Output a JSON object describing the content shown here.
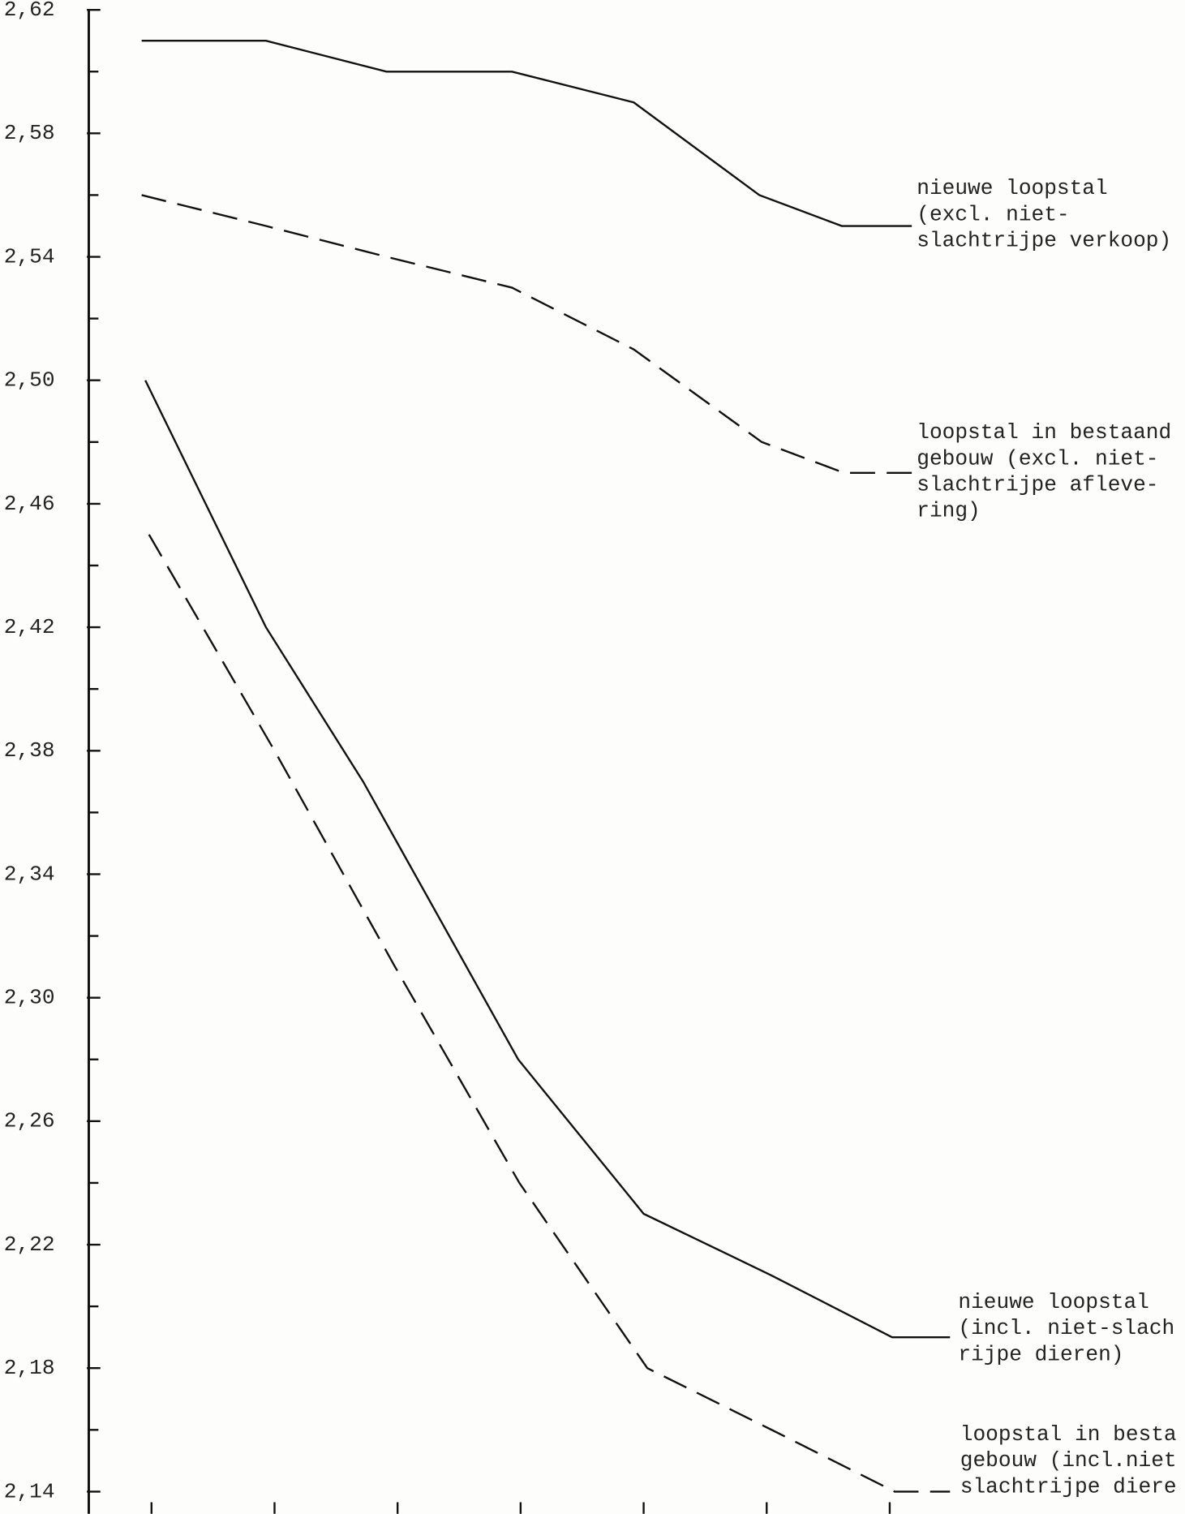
{
  "chart_data": {
    "type": "line",
    "ylim": [
      2.14,
      2.62
    ],
    "yticks": [
      {
        "value": 2.14,
        "label": "2,14"
      },
      {
        "value": 2.18,
        "label": "2,18"
      },
      {
        "value": 2.22,
        "label": "2,22"
      },
      {
        "value": 2.26,
        "label": "2,26"
      },
      {
        "value": 2.3,
        "label": "2,30"
      },
      {
        "value": 2.34,
        "label": "2,34"
      },
      {
        "value": 2.38,
        "label": "2,38"
      },
      {
        "value": 2.42,
        "label": "2,42"
      },
      {
        "value": 2.46,
        "label": "2,46"
      },
      {
        "value": 2.5,
        "label": "2,50"
      },
      {
        "value": 2.54,
        "label": "2,54"
      },
      {
        "value": 2.58,
        "label": "2,58"
      },
      {
        "value": 2.62,
        "label": "2,62"
      }
    ],
    "yticks_minor": [
      2.16,
      2.2,
      2.24,
      2.28,
      2.32,
      2.36,
      2.4,
      2.44,
      2.48,
      2.52,
      2.56,
      2.6
    ],
    "xlim": [
      0.49,
      9.4
    ],
    "xticks": [
      1,
      2,
      3,
      4,
      5,
      6,
      7
    ],
    "grid": false,
    "series": [
      {
        "color": "#111111",
        "dashed": false,
        "x": [
          0.92,
          1.93,
          2.91,
          3.93,
          4.92,
          5.94,
          6.61,
          7.18
        ],
        "values": [
          2.61,
          2.61,
          2.6,
          2.6,
          2.59,
          2.56,
          2.55,
          2.55
        ]
      },
      {
        "color": "#111111",
        "dashed": true,
        "x": [
          0.92,
          1.93,
          2.91,
          3.93,
          4.92,
          5.96,
          6.63,
          7.18
        ],
        "values": [
          2.56,
          2.55,
          2.54,
          2.53,
          2.51,
          2.48,
          2.47,
          2.47
        ]
      },
      {
        "color": "#111111",
        "dashed": false,
        "x": [
          0.95,
          1.93,
          2.72,
          3.98,
          5.0,
          6.04,
          7.02,
          7.49
        ],
        "values": [
          2.5,
          2.42,
          2.37,
          2.28,
          2.23,
          2.21,
          2.19,
          2.19
        ]
      },
      {
        "color": "#111111",
        "dashed": true,
        "x": [
          0.98,
          2.0,
          2.98,
          3.99,
          5.03,
          6.04,
          7.04,
          7.49
        ],
        "values": [
          2.45,
          2.38,
          2.31,
          2.24,
          2.18,
          2.16,
          2.14,
          2.14
        ]
      }
    ],
    "annotations": [
      [
        "nieuwe loopstal",
        "(excl. niet-",
        "slachtrijpe verkoop)"
      ],
      [
        "loopstal in bestaand",
        "gebouw (excl. niet-",
        "slachtrijpe afleve-",
        "ring)"
      ],
      [
        "nieuwe loopstal",
        "(incl. niet-slach",
        "rijpe dieren)"
      ],
      [
        "loopstal in besta",
        "gebouw (incl.niet",
        "slachtrijpe diere"
      ]
    ]
  }
}
